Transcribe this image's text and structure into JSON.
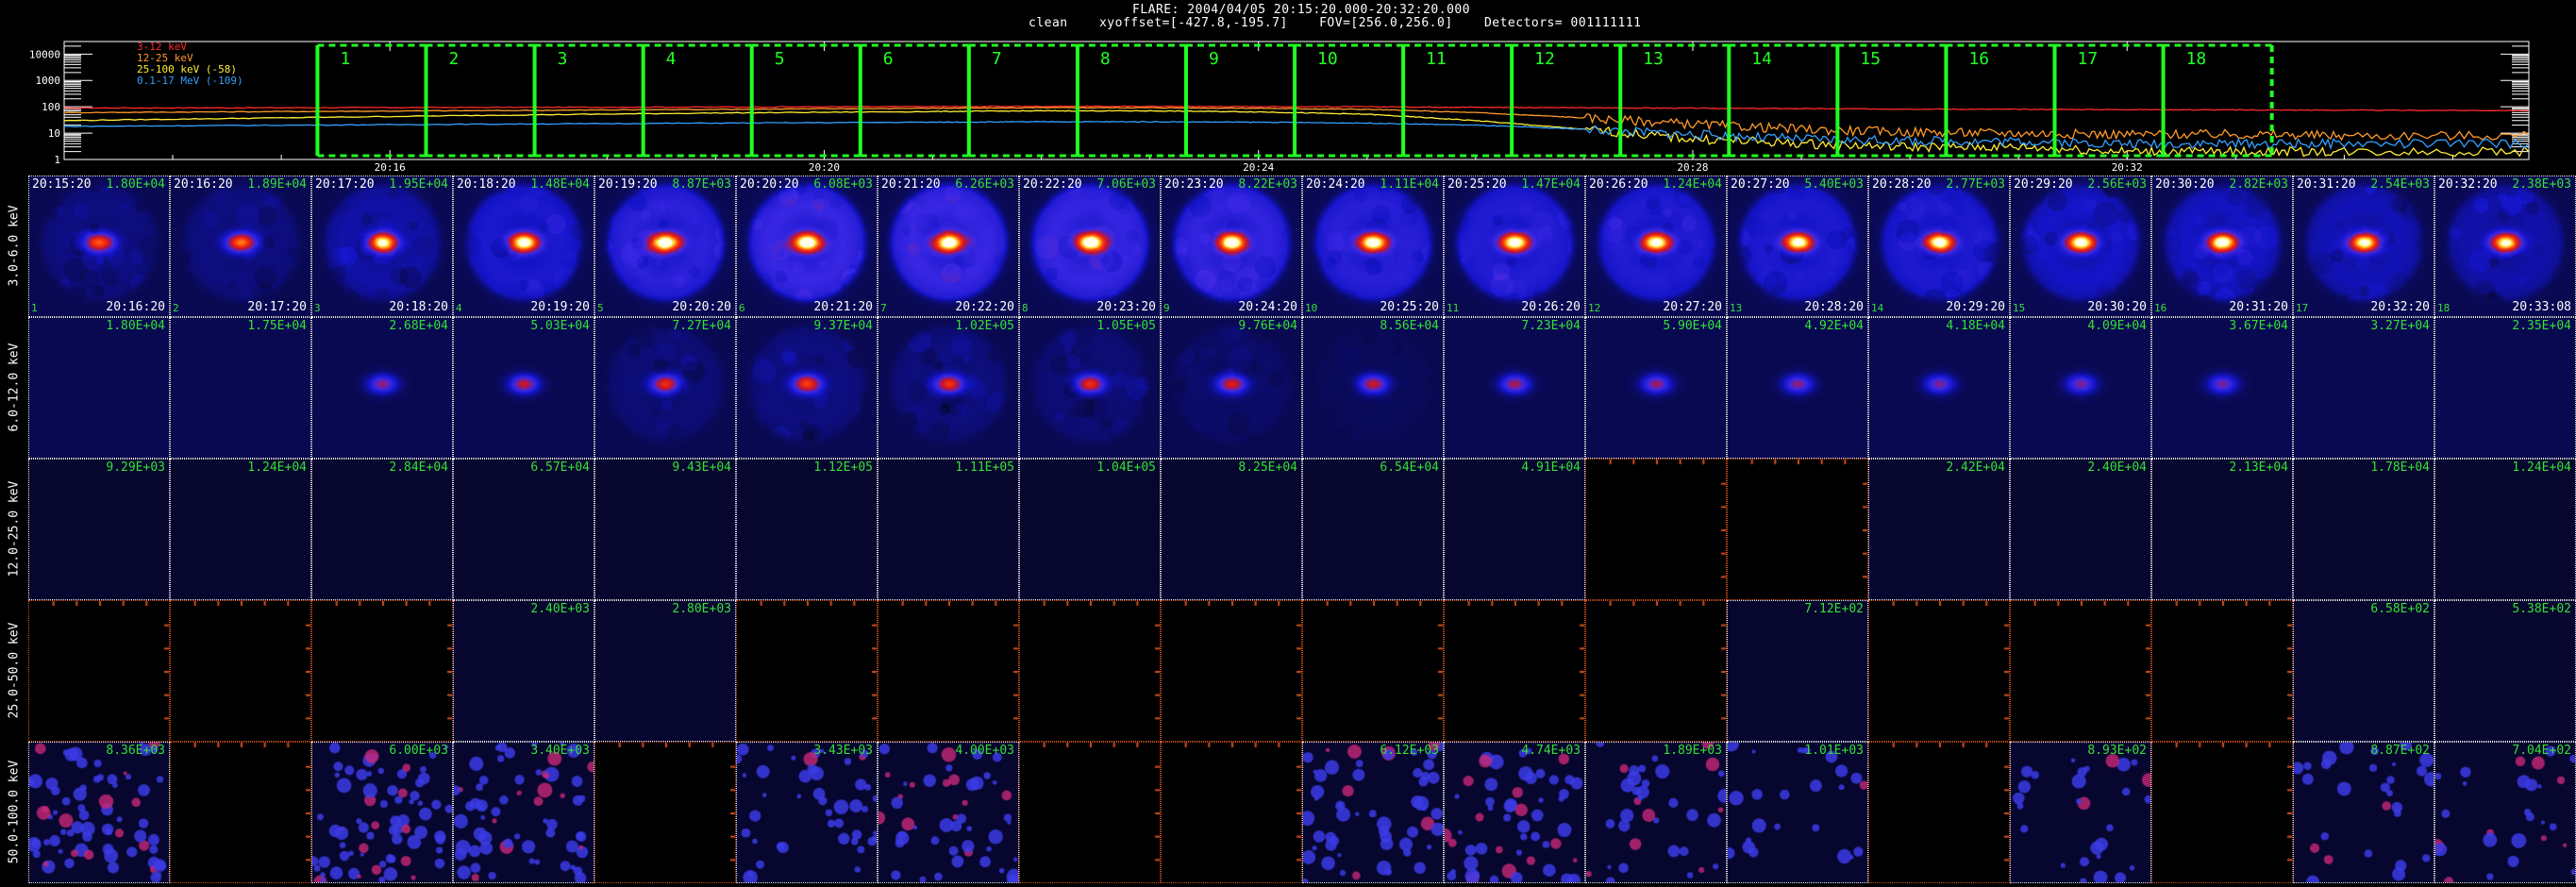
{
  "header": {
    "line1": "FLARE: 2004/04/05 20:15:20.000-20:32:20.000",
    "line2": "clean    xyoffset=[-427.8,-195.7]    FOV=[256.0,256.0]    Detectors= 001111111"
  },
  "colors": {
    "band_3_12": "#ff2a2a",
    "band_12_25": "#ff9a2a",
    "band_25_100": "#ffee33",
    "band_100_17000": "#33a0ff",
    "interval_box": "#22ff22",
    "peak_text": "#35e035",
    "blank_panel_border": "#d2501e"
  },
  "chart_data": {
    "type": "line",
    "title": "",
    "xlabel": "",
    "ylabel": "",
    "scale_y": "log",
    "ylim": [
      1,
      30000
    ],
    "y_ticks": [
      "10000",
      "1000",
      "100",
      "10",
      "1"
    ],
    "y_tick_values": [
      10000,
      1000,
      100,
      10,
      1
    ],
    "x_ticks": [
      "20:16",
      "20:20",
      "20:24",
      "20:28",
      "20:32"
    ],
    "x_tick_minutes": [
      16,
      20,
      24,
      28,
      32
    ],
    "xlim_minutes": [
      13.0,
      35.7
    ],
    "series": [
      {
        "name": "3-12 keV",
        "color": "#ff2a2a",
        "x": [
          13,
          15,
          17,
          19,
          21,
          22,
          23,
          24,
          25,
          26,
          27,
          28,
          29,
          30,
          31,
          32,
          33,
          34,
          35.7
        ],
        "y": [
          90,
          92,
          95,
          98,
          102,
          104,
          104,
          102,
          100,
          96,
          92,
          88,
          85,
          82,
          80,
          78,
          76,
          74,
          72
        ]
      },
      {
        "name": "12-25 keV",
        "color": "#ff9a2a",
        "x": [
          13,
          15,
          17,
          19,
          21,
          22,
          23,
          24,
          25,
          26,
          27,
          28,
          29,
          30,
          31,
          32,
          33,
          34,
          35.7
        ],
        "y": [
          60,
          66,
          72,
          80,
          88,
          92,
          92,
          88,
          80,
          60,
          38,
          22,
          14,
          11,
          10,
          9,
          9,
          8,
          8
        ]
      },
      {
        "name": "25-100 keV (-58)",
        "color": "#ffee33",
        "x": [
          13,
          15,
          17,
          19,
          21,
          22,
          23,
          24,
          25,
          26,
          27,
          28,
          29,
          30,
          31,
          32,
          33,
          34,
          35.7
        ],
        "y": [
          30,
          38,
          48,
          58,
          66,
          70,
          70,
          64,
          52,
          30,
          14,
          6,
          4,
          3,
          3,
          2,
          2,
          2,
          2
        ]
      },
      {
        "name": "0.1-17 MeV (-109)",
        "color": "#33a0ff",
        "x": [
          13,
          15,
          17,
          19,
          21,
          22,
          23,
          24,
          25,
          26,
          27,
          28,
          29,
          30,
          31,
          32,
          33,
          34,
          35.7
        ],
        "y": [
          18,
          20,
          22,
          24,
          26,
          27,
          27,
          26,
          24,
          20,
          14,
          9,
          6,
          5,
          5,
          4,
          4,
          4,
          4
        ]
      }
    ],
    "intervals": [
      {
        "label": "1",
        "start": 15.333,
        "end": 16.333
      },
      {
        "label": "2",
        "start": 16.333,
        "end": 17.333
      },
      {
        "label": "3",
        "start": 17.333,
        "end": 18.333
      },
      {
        "label": "4",
        "start": 18.333,
        "end": 19.333
      },
      {
        "label": "5",
        "start": 19.333,
        "end": 20.333
      },
      {
        "label": "6",
        "start": 20.333,
        "end": 21.333
      },
      {
        "label": "7",
        "start": 21.333,
        "end": 22.333
      },
      {
        "label": "8",
        "start": 22.333,
        "end": 23.333
      },
      {
        "label": "9",
        "start": 23.333,
        "end": 24.333
      },
      {
        "label": "10",
        "start": 24.333,
        "end": 25.333
      },
      {
        "label": "11",
        "start": 25.333,
        "end": 26.333
      },
      {
        "label": "12",
        "start": 26.333,
        "end": 27.333
      },
      {
        "label": "13",
        "start": 27.333,
        "end": 28.333
      },
      {
        "label": "14",
        "start": 28.333,
        "end": 29.333
      },
      {
        "label": "15",
        "start": 29.333,
        "end": 30.333
      },
      {
        "label": "16",
        "start": 30.333,
        "end": 31.333
      },
      {
        "label": "17",
        "start": 31.333,
        "end": 32.333
      },
      {
        "label": "18",
        "start": 32.333,
        "end": 33.333
      }
    ]
  },
  "image_grid": {
    "row_labels": [
      "3.0-6.0 keV",
      "6.0-12.0 keV",
      "12.0-25.0 keV",
      "25.0-50.0 keV",
      "50.0-100.0 keV"
    ],
    "start_times": [
      "20:15:20",
      "20:16:20",
      "20:17:20",
      "20:18:20",
      "20:19:20",
      "20:20:20",
      "20:21:20",
      "20:22:20",
      "20:23:20",
      "20:24:20",
      "20:25:20",
      "20:26:20",
      "20:27:20",
      "20:28:20",
      "20:29:20",
      "20:30:20",
      "20:31:20",
      "20:32:20"
    ],
    "end_times": [
      "20:16:20",
      "20:17:20",
      "20:18:20",
      "20:19:20",
      "20:20:20",
      "20:21:20",
      "20:22:20",
      "20:23:20",
      "20:24:20",
      "20:25:20",
      "20:26:20",
      "20:27:20",
      "20:28:20",
      "20:29:20",
      "20:30:20",
      "20:31:20",
      "20:32:20",
      "20:33:08"
    ],
    "panels": [
      [
        {
          "peak": "1.80E+04",
          "level": 0.15,
          "halo": 0.6
        },
        {
          "peak": "1.89E+04",
          "level": 0.18,
          "halo": 0.55
        },
        {
          "peak": "1.95E+04",
          "level": 0.3,
          "halo": 0.75
        },
        {
          "peak": "1.48E+04",
          "level": 0.55,
          "halo": 0.8
        },
        {
          "peak": "8.87E+03",
          "level": 0.75,
          "halo": 0.85
        },
        {
          "peak": "6.08E+03",
          "level": 0.85,
          "halo": 0.9
        },
        {
          "peak": "6.26E+03",
          "level": 0.85,
          "halo": 0.9
        },
        {
          "peak": "7.06E+03",
          "level": 0.82,
          "halo": 0.9
        },
        {
          "peak": "8.22E+03",
          "level": 0.78,
          "halo": 0.88
        },
        {
          "peak": "1.11E+04",
          "level": 0.7,
          "halo": 0.85
        },
        {
          "peak": "1.47E+04",
          "level": 0.62,
          "halo": 0.85
        },
        {
          "peak": "1.24E+04",
          "level": 0.6,
          "halo": 0.85
        },
        {
          "peak": "5.40E+03",
          "level": 0.55,
          "halo": 0.85
        },
        {
          "peak": "2.77E+03",
          "level": 0.55,
          "halo": 0.85
        },
        {
          "peak": "2.56E+03",
          "level": 0.45,
          "halo": 0.8
        },
        {
          "peak": "2.82E+03",
          "level": 0.42,
          "halo": 0.8
        },
        {
          "peak": "2.54E+03",
          "level": 0.35,
          "halo": 0.8
        },
        {
          "peak": "2.38E+03",
          "level": 0.3,
          "halo": 0.78
        }
      ],
      [
        {
          "peak": "1.80E+04",
          "level": 0,
          "halo": 0
        },
        {
          "peak": "1.75E+04",
          "level": 0,
          "halo": 0
        },
        {
          "peak": "2.68E+04",
          "level": 0.02,
          "halo": 0
        },
        {
          "peak": "5.03E+04",
          "level": 0.06,
          "halo": 0
        },
        {
          "peak": "7.27E+04",
          "level": 0.1,
          "halo": 0.55
        },
        {
          "peak": "9.37E+04",
          "level": 0.12,
          "halo": 0.65
        },
        {
          "peak": "1.02E+05",
          "level": 0.12,
          "halo": 0.6
        },
        {
          "peak": "1.05E+05",
          "level": 0.1,
          "halo": 0.55
        },
        {
          "peak": "9.76E+04",
          "level": 0.08,
          "halo": 0.4
        },
        {
          "peak": "8.56E+04",
          "level": 0.06,
          "halo": 0.15
        },
        {
          "peak": "7.23E+04",
          "level": 0.04,
          "halo": 0
        },
        {
          "peak": "5.90E+04",
          "level": 0.03,
          "halo": 0
        },
        {
          "peak": "4.92E+04",
          "level": 0.02,
          "halo": 0
        },
        {
          "peak": "4.18E+04",
          "level": 0.01,
          "halo": 0
        },
        {
          "peak": "4.09E+04",
          "level": 0.01,
          "halo": 0
        },
        {
          "peak": "3.67E+04",
          "level": 0.005,
          "halo": 0
        },
        {
          "peak": "3.27E+04",
          "level": 0,
          "halo": 0
        },
        {
          "peak": "2.35E+04",
          "level": 0,
          "halo": 0
        }
      ],
      [
        {
          "peak": "9.29E+03"
        },
        {
          "peak": "1.24E+04"
        },
        {
          "peak": "2.84E+04"
        },
        {
          "peak": "6.57E+04"
        },
        {
          "peak": "9.43E+04"
        },
        {
          "peak": "1.12E+05"
        },
        {
          "peak": "1.11E+05"
        },
        {
          "peak": "1.04E+05"
        },
        {
          "peak": "8.25E+04"
        },
        {
          "peak": "6.54E+04"
        },
        {
          "peak": "4.91E+04"
        },
        {
          "peak": "",
          "blank": true
        },
        {
          "peak": "",
          "blank": true
        },
        {
          "peak": "2.42E+04"
        },
        {
          "peak": "2.40E+04"
        },
        {
          "peak": "2.13E+04"
        },
        {
          "peak": "1.78E+04"
        },
        {
          "peak": "1.24E+04"
        }
      ],
      [
        {
          "peak": "",
          "blank": true
        },
        {
          "peak": "",
          "blank": true
        },
        {
          "peak": "",
          "blank": true
        },
        {
          "peak": "2.40E+03"
        },
        {
          "peak": "2.80E+03"
        },
        {
          "peak": "",
          "blank": true
        },
        {
          "peak": "",
          "blank": true
        },
        {
          "peak": "",
          "blank": true
        },
        {
          "peak": "",
          "blank": true
        },
        {
          "peak": "",
          "blank": true
        },
        {
          "peak": "",
          "blank": true
        },
        {
          "peak": "",
          "blank": true
        },
        {
          "peak": "7.12E+02"
        },
        {
          "peak": "",
          "blank": true
        },
        {
          "peak": "",
          "blank": true
        },
        {
          "peak": "",
          "blank": true
        },
        {
          "peak": "6.58E+02"
        },
        {
          "peak": "5.38E+02"
        }
      ],
      [
        {
          "peak": "8.36E+03",
          "noise": 0.9
        },
        {
          "peak": "",
          "blank": true
        },
        {
          "peak": "6.00E+03",
          "noise": 0.9
        },
        {
          "peak": "3.40E+03",
          "noise": 0.8
        },
        {
          "peak": "",
          "blank": true
        },
        {
          "peak": "3.43E+03",
          "noise": 0.55
        },
        {
          "peak": "4.00E+03",
          "noise": 0.6
        },
        {
          "peak": "",
          "blank": true
        },
        {
          "peak": "",
          "blank": true
        },
        {
          "peak": "6.12E+03",
          "noise": 0.7
        },
        {
          "peak": "4.74E+03",
          "noise": 0.7
        },
        {
          "peak": "1.89E+03",
          "noise": 0.45
        },
        {
          "peak": "1.01E+03",
          "noise": 0.3
        },
        {
          "peak": "",
          "blank": true
        },
        {
          "peak": "8.93E+02",
          "noise": 0.35
        },
        {
          "peak": "",
          "blank": true
        },
        {
          "peak": "8.87E+02",
          "noise": 0.35
        },
        {
          "peak": "7.04E+02",
          "noise": 0.35
        }
      ]
    ]
  }
}
